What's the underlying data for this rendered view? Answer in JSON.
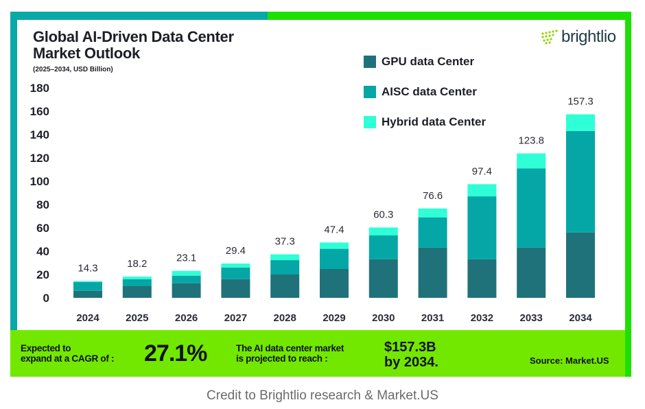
{
  "header": {
    "title_line1": "Global AI-Driven Data Center",
    "title_line2": "Market Outlook",
    "subtitle": "(2025–2034, USD Billion)",
    "logo_text": "brightlio"
  },
  "colors": {
    "gpu": "#20727a",
    "aisc": "#05a6a6",
    "hybrid": "#2effd6",
    "accent_teal": "#0aa8a6",
    "accent_green": "#1ee000",
    "footer_green": "#72e800",
    "logo_green": "#8fd400"
  },
  "chart_data": {
    "type": "bar",
    "stacked": true,
    "title": "Global AI-Driven Data Center Market Outlook",
    "subtitle": "(2025–2034, USD Billion)",
    "xlabel": "",
    "ylabel": "USD Billion",
    "ylim": [
      0,
      180
    ],
    "yticks": [
      0,
      20,
      40,
      60,
      80,
      100,
      120,
      140,
      160,
      180
    ],
    "grid": false,
    "legend_position": "top-right",
    "categories": [
      "2024",
      "2025",
      "2026",
      "2027",
      "2028",
      "2029",
      "2030",
      "2031",
      "2032",
      "2033",
      "2034"
    ],
    "series": [
      {
        "name": "GPU data Center",
        "values": [
          6,
          10,
          12.5,
          16,
          20,
          24.7,
          33,
          43,
          33,
          43,
          56
        ]
      },
      {
        "name": "AISC data Center",
        "values": [
          7.5,
          6,
          6.5,
          10,
          12.3,
          17.3,
          20.5,
          26,
          54,
          68,
          87
        ]
      },
      {
        "name": "Hybrid data Center",
        "values": [
          0.8,
          2.2,
          4.1,
          3.4,
          5,
          5.4,
          6.8,
          7.6,
          10.4,
          12.8,
          14.3
        ]
      }
    ],
    "totals": [
      14.3,
      18.2,
      23.1,
      29.4,
      37.3,
      47.4,
      60.3,
      76.6,
      97.4,
      123.8,
      157.3
    ],
    "total_labels": [
      "14.3",
      "18.2",
      "23.1",
      "29.4",
      "37.3",
      "47.4",
      "60.3",
      "76.6",
      "97.4",
      "123.8",
      "157.3"
    ]
  },
  "footer": {
    "cagr_line1": "Expected to",
    "cagr_line2": "expand at a CAGR of :",
    "cagr_value": "27.1%",
    "market_line1": "The AI data center market",
    "market_line2": "is projected to reach :",
    "market_value_line1": "$157.3B",
    "market_value_line2": "by 2034.",
    "source": "Source: Market.US"
  },
  "credit": "Credit to Brightlio research & Market.US"
}
